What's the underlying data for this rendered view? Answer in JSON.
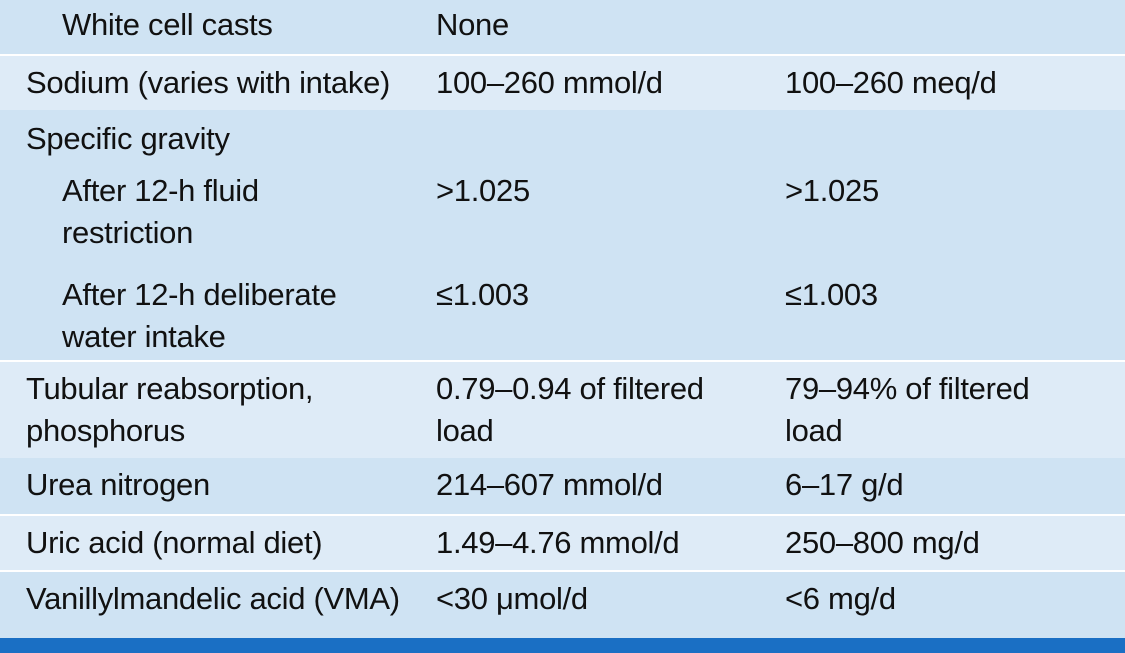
{
  "rows": [
    {
      "c1": "White cell casts",
      "c2": "None",
      "c3": ""
    },
    {
      "c1": "Sodium (varies with intake)",
      "c2": "100–260 mmol/d",
      "c3": "100–260 meq/d"
    },
    {
      "c1": "Specific gravity",
      "c2": "",
      "c3": ""
    },
    {
      "c1": "After 12-h fluid\nrestriction",
      "c2": ">1.025",
      "c3": ">1.025"
    },
    {
      "c1": "After 12-h deliberate\nwater intake",
      "c2": "≤1.003",
      "c3": "≤1.003"
    },
    {
      "c1": "Tubular reabsorption,\nphosphorus",
      "c2": "0.79–0.94 of filtered\nload",
      "c3": "79–94% of filtered\nload"
    },
    {
      "c1": "Urea nitrogen",
      "c2": "214–607 mmol/d",
      "c3": "6–17 g/d"
    },
    {
      "c1": "Uric acid (normal diet)",
      "c2": "1.49–4.76 mmol/d",
      "c3": "250–800 mg/d"
    },
    {
      "c1": "Vanillylmandelic acid (VMA)",
      "c2": "<30 μmol/d",
      "c3": "<6 mg/d"
    }
  ]
}
